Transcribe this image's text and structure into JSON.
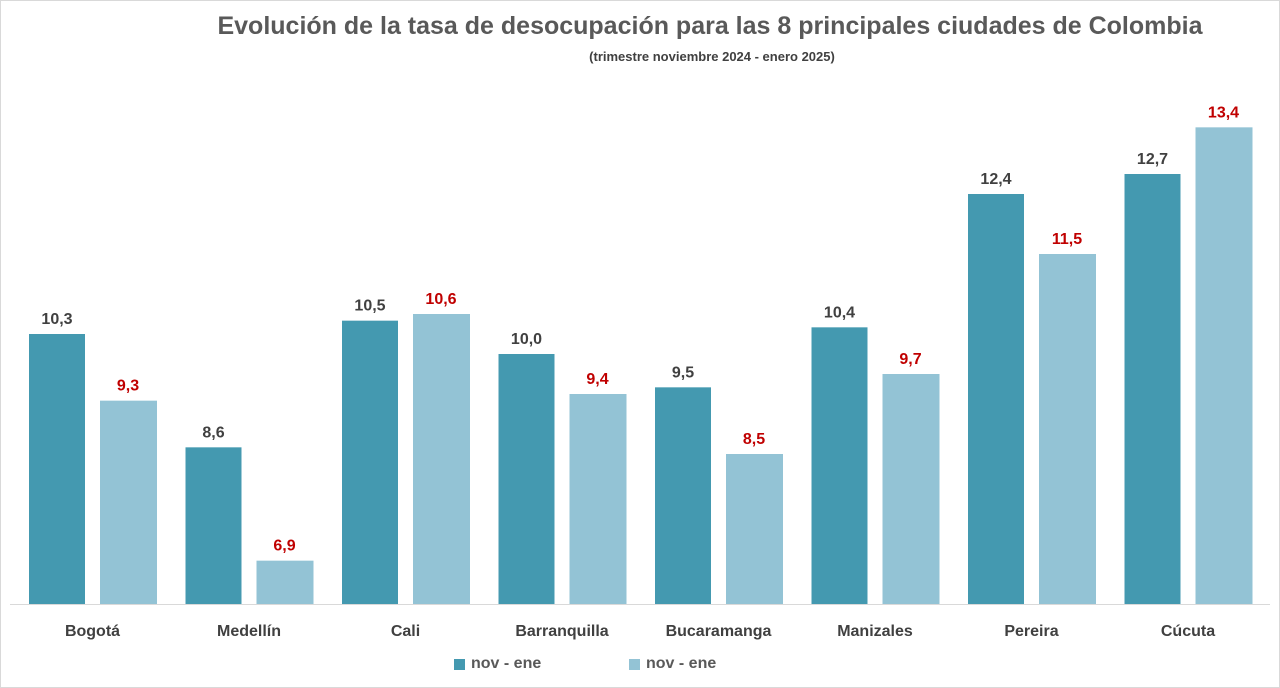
{
  "chart_data": {
    "type": "bar",
    "title": "Evolución de la tasa de desocupación para las 8 principales ciudades de Colombia",
    "subtitle": "(trimestre noviembre 2024 - enero  2025)",
    "categories": [
      "Bogotá",
      "Medellín",
      "Cali",
      "Barranquilla",
      "Bucaramanga",
      "Manizales",
      "Pereira",
      "Cúcuta"
    ],
    "series": [
      {
        "name": "nov - ene",
        "color": "#4499b0",
        "label_color": "#404040",
        "values": [
          10.3,
          8.6,
          10.5,
          10.0,
          9.5,
          10.4,
          12.4,
          12.7
        ],
        "labels": [
          "10,3",
          "8,6",
          "10,5",
          "10,0",
          "9,5",
          "10,4",
          "12,4",
          "12,7"
        ]
      },
      {
        "name": "nov - ene",
        "color": "#93c3d5",
        "label_color": "#c00000",
        "values": [
          9.3,
          6.9,
          10.6,
          9.4,
          8.5,
          9.7,
          11.5,
          13.4
        ],
        "labels": [
          "9,3",
          "6,9",
          "10,6",
          "9,4",
          "8,5",
          "9,7",
          "11,5",
          "13,4"
        ]
      }
    ],
    "xlabel": "",
    "ylabel": "",
    "ylim": [
      6.25,
      13.6
    ],
    "grid": false,
    "legend": "bottom"
  }
}
